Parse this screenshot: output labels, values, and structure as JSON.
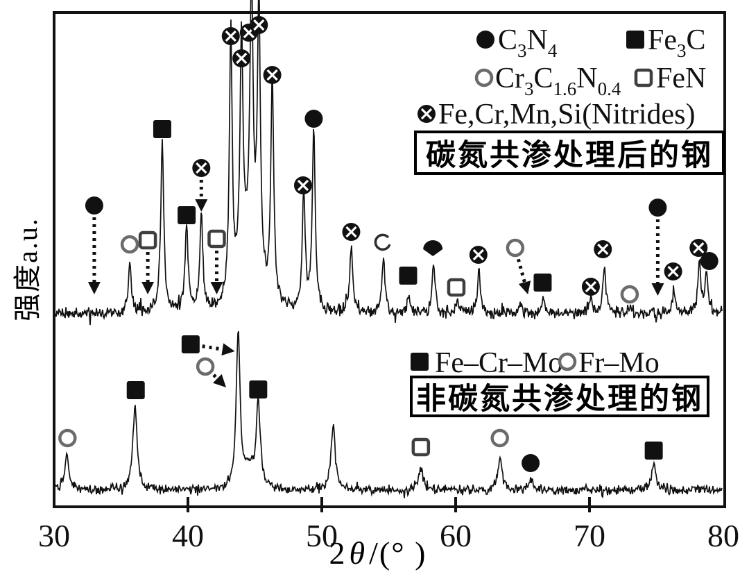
{
  "page": {
    "background": "#ffffff",
    "ink": "#111111",
    "open_marker_gray": "#6b6b6b"
  },
  "axes": {
    "ylabel": "强度a.u.",
    "xlabel": {
      "pre": "2",
      "theta": "θ",
      "post": "/(°  )"
    },
    "x_ticks": [
      30,
      40,
      50,
      60,
      70,
      80
    ]
  },
  "series_boxes": {
    "top": "碳氮共渗处理后的钢",
    "bottom": "非碳氮共渗处理的钢"
  },
  "chart_data": {
    "type": "line",
    "title": "",
    "xlabel": "2θ/(°)",
    "ylabel": "强度a.u.",
    "x_range": [
      30,
      80
    ],
    "x_ticks": [
      30,
      40,
      50,
      60,
      70,
      80
    ],
    "grid": false,
    "legend_position": "top-right",
    "marker_symbols": {
      "fc": "filled-circle C3N4",
      "fs": "filled-square Fe3C / Fe-Cr-Mo",
      "oc": "open-circle Cr3C1.6N0.4 / Fr-Mo",
      "os": "open-square FeN",
      "cx": "circle-cross Fe,Cr,Mn,Si(Nitrides)",
      "hc": "filled-half-circle",
      "bc": "broken-open-circle"
    },
    "legend_top": [
      {
        "symbol": "fc",
        "label": "C~3~N~4~"
      },
      {
        "symbol": "fs",
        "label": "Fe~3~C"
      },
      {
        "symbol": "oc",
        "label": "Cr~3~C~1.6~N~0.4~"
      },
      {
        "symbol": "os",
        "label": "FeN"
      },
      {
        "symbol": "cx",
        "label": "Fe,Cr,Mn,Si(Nitrides)"
      }
    ],
    "legend_bottom": [
      {
        "symbol": "fs",
        "label": "Fe–Cr–Mo"
      },
      {
        "symbol": "oc",
        "label": "Fr–Mo"
      }
    ],
    "series": [
      {
        "name": "碳氮共渗处理后的钢",
        "description": "XRD pattern of carbonitrided steel (upper trace), intensity in arbitrary units (relative %, max peak = 100)",
        "peaks": [
          {
            "t": 35.65,
            "i": 18
          },
          {
            "t": 38.08,
            "i": 62
          },
          {
            "t": 39.9,
            "i": 31
          },
          {
            "t": 41.0,
            "i": 34
          },
          {
            "t": 43.2,
            "i": 95
          },
          {
            "t": 44.0,
            "i": 87
          },
          {
            "t": 44.6,
            "i": 22,
            "w": 0.7
          },
          {
            "t": 44.75,
            "i": 97
          },
          {
            "t": 45.3,
            "i": 100
          },
          {
            "t": 46.3,
            "i": 80
          },
          {
            "t": 48.65,
            "i": 42
          },
          {
            "t": 49.4,
            "i": 65
          },
          {
            "t": 52.2,
            "i": 24
          },
          {
            "t": 54.6,
            "i": 21
          },
          {
            "t": 56.5,
            "i": 7
          },
          {
            "t": 58.35,
            "i": 18
          },
          {
            "t": 60.1,
            "i": 5
          },
          {
            "t": 61.75,
            "i": 15
          },
          {
            "t": 64.8,
            "i": 3.5
          },
          {
            "t": 66.5,
            "i": 5.5
          },
          {
            "t": 70.1,
            "i": 6
          },
          {
            "t": 71.1,
            "i": 18
          },
          {
            "t": 73.0,
            "i": 3
          },
          {
            "t": 76.3,
            "i": 8
          },
          {
            "t": 78.2,
            "i": 18
          },
          {
            "t": 78.75,
            "i": 14
          }
        ],
        "markers": [
          {
            "s": "fc",
            "t": 33.0,
            "y": 296,
            "a": [
              33.0,
              424
            ]
          },
          {
            "s": "oc",
            "t": 35.65,
            "y": 352
          },
          {
            "s": "os",
            "t": 37.0,
            "y": 346,
            "a": [
              37.0,
              424
            ]
          },
          {
            "s": "fs",
            "t": 38.08,
            "y": 186
          },
          {
            "s": "fs",
            "t": 39.9,
            "y": 310
          },
          {
            "s": "cx",
            "t": 41.0,
            "y": 242,
            "a": [
              41.0,
              305
            ]
          },
          {
            "s": "os",
            "t": 42.15,
            "y": 344,
            "a": [
              42.15,
              424
            ]
          },
          {
            "s": "cx",
            "t": 43.2,
            "y": 52
          },
          {
            "s": "cx",
            "t": 44.0,
            "y": 84
          },
          {
            "s": "cx",
            "t": 44.55,
            "y": 47
          },
          {
            "s": "cx",
            "t": 45.3,
            "y": 36
          },
          {
            "s": "cx",
            "t": 46.3,
            "y": 108
          },
          {
            "s": "cx",
            "t": 48.6,
            "y": 267
          },
          {
            "s": "fc",
            "t": 49.4,
            "y": 171
          },
          {
            "s": "cx",
            "t": 52.2,
            "y": 334
          },
          {
            "s": "bc",
            "t": 54.55,
            "y": 349
          },
          {
            "s": "fs",
            "t": 56.45,
            "y": 397
          },
          {
            "s": "hc",
            "t": 58.3,
            "y": 356
          },
          {
            "s": "os",
            "t": 60.05,
            "y": 414
          },
          {
            "s": "cx",
            "t": 61.7,
            "y": 367
          },
          {
            "s": "oc",
            "t": 64.45,
            "y": 357,
            "a": [
              65.4,
              424
            ]
          },
          {
            "s": "fs",
            "t": 66.5,
            "y": 407
          },
          {
            "s": "cx",
            "t": 70.1,
            "y": 413
          },
          {
            "s": "cx",
            "t": 71.0,
            "y": 359
          },
          {
            "s": "oc",
            "t": 73.0,
            "y": 424
          },
          {
            "s": "fc",
            "t": 75.1,
            "y": 299,
            "a": [
              75.1,
              426
            ]
          },
          {
            "s": "cx",
            "t": 76.25,
            "y": 391
          },
          {
            "s": "cx",
            "t": 78.15,
            "y": 357
          },
          {
            "s": "fc",
            "t": 78.95,
            "y": 376
          }
        ]
      },
      {
        "name": "非碳氮共渗处理的钢",
        "description": "XRD pattern of non-carbonitrided steel (lower trace), intensity in arbitrary units (relative %, max peak = 100)",
        "peaks": [
          {
            "t": 30.95,
            "i": 21
          },
          {
            "t": 36.05,
            "i": 54
          },
          {
            "t": 43.75,
            "i": 100,
            "w": 0.17
          },
          {
            "t": 44.55,
            "i": 13,
            "w": 0.35
          },
          {
            "t": 45.25,
            "i": 55,
            "w": 0.18
          },
          {
            "t": 50.85,
            "i": 42,
            "w": 0.18
          },
          {
            "t": 57.4,
            "i": 13,
            "w": 0.22
          },
          {
            "t": 63.3,
            "i": 20,
            "w": 0.18
          },
          {
            "t": 65.6,
            "i": 5,
            "w": 0.25
          },
          {
            "t": 74.8,
            "i": 16,
            "w": 0.2
          }
        ],
        "markers": [
          {
            "s": "oc",
            "t": 31.0,
            "y": 631
          },
          {
            "s": "fs",
            "t": 36.1,
            "y": 562
          },
          {
            "s": "fs",
            "t": 40.2,
            "y": 496,
            "a": [
              43.5,
              506
            ]
          },
          {
            "s": "oc",
            "t": 41.3,
            "y": 528,
            "a": [
              42.85,
              558
            ]
          },
          {
            "s": "fs",
            "t": 45.25,
            "y": 561
          },
          {
            "s": "os",
            "t": 57.4,
            "y": 644
          },
          {
            "s": "oc",
            "t": 63.3,
            "y": 631
          },
          {
            "s": "fc",
            "t": 65.6,
            "y": 667
          },
          {
            "s": "fs",
            "t": 74.8,
            "y": 649
          }
        ]
      }
    ]
  }
}
